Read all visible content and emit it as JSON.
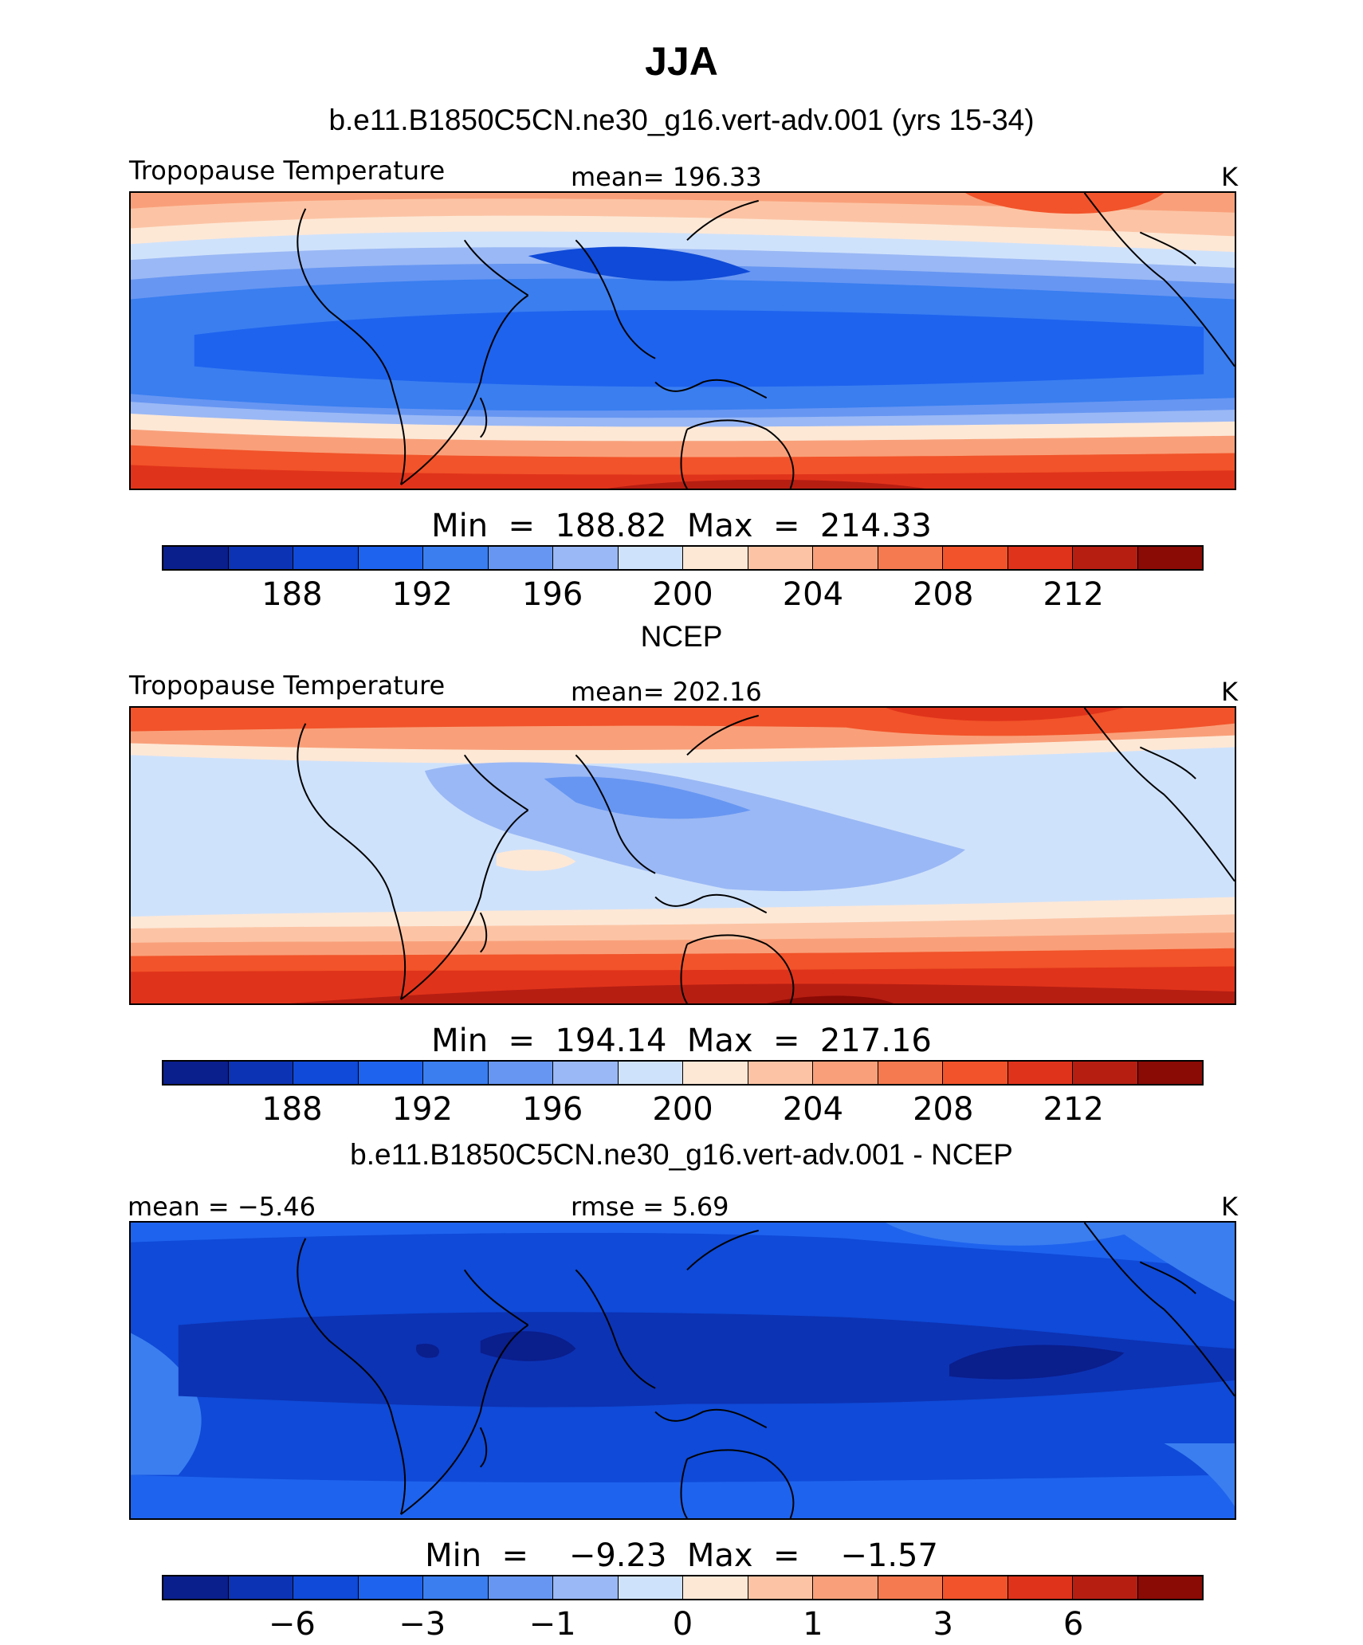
{
  "title": "JJA",
  "colors": [
    "#0a1e8c",
    "#0c33b4",
    "#0f4ad8",
    "#1e63ee",
    "#3a7ef0",
    "#6796f2",
    "#9ab8f5",
    "#cfe2fb",
    "#fde8d6",
    "#fcc4a5",
    "#f9a07a",
    "#f67a4f",
    "#f2532a",
    "#e0331b",
    "#b61e12",
    "#8a0a05"
  ],
  "panels": [
    {
      "header": "b.e11.B1850C5CN.ne30_g16.vert-adv.001 (yrs 15-34)",
      "left_label": "Tropopause  Temperature",
      "center_label": "mean=  196.33",
      "units": "K",
      "minmax": "Min  =  188.82  Max  =  214.33",
      "ticks": [
        "188",
        "192",
        "196",
        "200",
        "204",
        "208",
        "212"
      ]
    },
    {
      "header": "NCEP",
      "left_label": "Tropopause  Temperature",
      "center_label": "mean=  202.16",
      "units": "K",
      "minmax": "Min  =  194.14  Max  =  217.16",
      "ticks": [
        "188",
        "192",
        "196",
        "200",
        "204",
        "208",
        "212"
      ]
    },
    {
      "header": "b.e11.B1850C5CN.ne30_g16.vert-adv.001 - NCEP",
      "left_label": "mean  =   −5.46",
      "center_label": "rmse  =     5.69",
      "units": "K",
      "minmax": "Min  =    −9.23  Max  =    −1.57",
      "ticks": [
        "−6",
        "−3",
        "−1",
        "0",
        "1",
        "3",
        "6"
      ]
    }
  ]
}
